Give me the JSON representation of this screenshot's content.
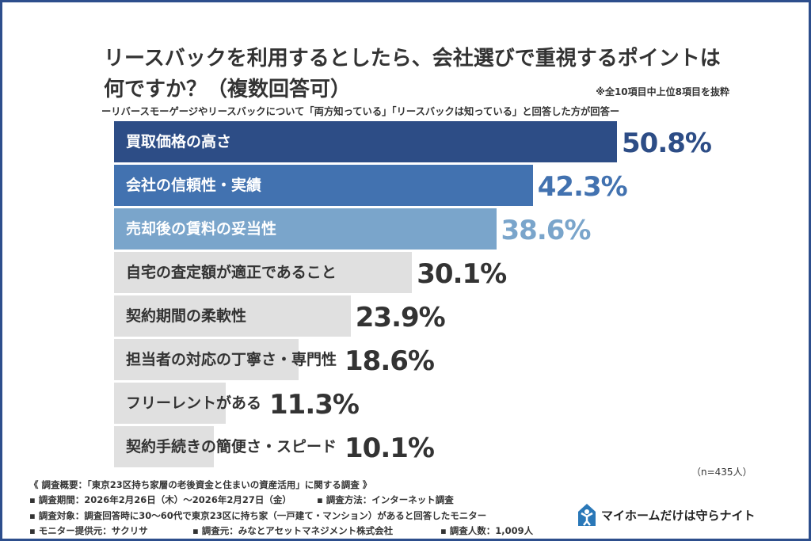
{
  "title_line1": "リースバックを利用するとしたら、会社選びで重視するポイントは",
  "title_line2": "何ですか？（複数回答可）",
  "scope_note": "※全10項目中上位8項目を抜粋",
  "subtitle": "ーリバースモーゲージやリースバックについて「両方知っている」「リースバックは知っている」と回答した方が回答ー",
  "sample_note": "（n=435人）",
  "chart_data": {
    "type": "bar",
    "orientation": "horizontal",
    "categories": [
      "買取価格の高さ",
      "会社の信頼性・実績",
      "売却後の賃料の妥当性",
      "自宅の査定額が適正であること",
      "契約期間の柔軟性",
      "担当者の対応の丁寧さ・専門性",
      "フリーレントがある",
      "契約手続きの簡便さ・スピード"
    ],
    "values": [
      50.8,
      42.3,
      38.6,
      30.1,
      23.9,
      18.6,
      11.3,
      10.1
    ],
    "value_labels": [
      "50.8%",
      "42.3%",
      "38.6%",
      "30.1%",
      "23.9%",
      "18.6%",
      "11.3%",
      "10.1%"
    ],
    "bar_colors": [
      "#2d4d86",
      "#4272b0",
      "#7aa5cb",
      "#e0e0e0",
      "#e0e0e0",
      "#e0e0e0",
      "#e0e0e0",
      "#e0e0e0"
    ],
    "label_colors": [
      "#ffffff",
      "#ffffff",
      "#ffffff",
      "#333333",
      "#333333",
      "#333333",
      "#333333",
      "#333333"
    ],
    "value_colors": [
      "#2d4d86",
      "#4272b0",
      "#7aa5cb",
      "#333333",
      "#333333",
      "#333333",
      "#333333",
      "#333333"
    ],
    "xlim": [
      0,
      100
    ]
  },
  "footer": {
    "overview": "《 調査概要：「東京23区持ち家層の老後資金と住まいの資産活用」に関する調査 》",
    "period": "▪ 調査期間：2026年2月26日（木）～2026年2月27日（金）",
    "method": "▪ 調査方法：インターネット調査",
    "target": "▪ 調査対象：調査回答時に30～60代で東京23区に持ち家（一戸建て・マンション）があると回答したモニター",
    "provider": "▪ モニター提供元：サクリサ",
    "organizer": "▪ 調査元：みなとアセットマネジメント株式会社",
    "count": "▪ 調査人数：1,009人"
  },
  "logo": {
    "text": "マイホームだけは守らナイト",
    "icon": "house-person-icon",
    "color": "#2a78b8"
  }
}
